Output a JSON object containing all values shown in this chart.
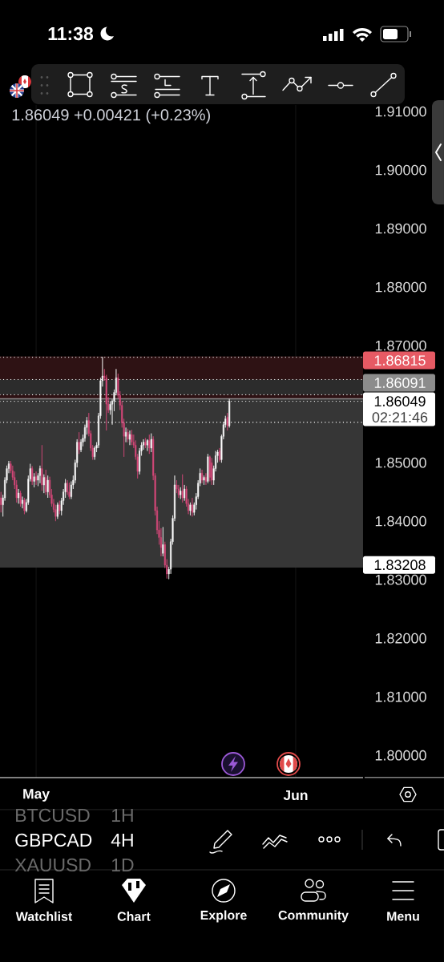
{
  "chart_data": {
    "type": "candlestick",
    "title": "GBPCAD",
    "subtitle": "4H",
    "annotations": [
      "1.86049 +0.00421 (+0.23%)",
      "02:21:46",
      "11:38",
      "BTCUSD",
      "1H",
      "XAUUSD",
      "1D",
      "Watchlist",
      "Chart",
      "Explore",
      "Community",
      "Menu"
    ],
    "categories": [
      null,
      null,
      null,
      null,
      null,
      null,
      null,
      null,
      null,
      null,
      null,
      null,
      null,
      null,
      null,
      null,
      null,
      null,
      "May",
      null,
      null,
      null,
      null,
      null,
      null,
      null,
      null,
      null,
      null,
      null,
      null,
      null,
      null,
      null,
      null,
      null,
      null,
      null,
      null,
      null,
      null,
      null,
      null,
      null,
      null,
      null,
      null,
      null,
      null,
      null,
      null,
      null,
      null,
      null,
      null,
      null,
      null,
      null,
      null,
      null,
      null,
      null,
      null,
      null,
      null,
      null,
      null,
      null,
      null,
      null,
      null,
      null,
      null,
      null,
      null,
      null,
      null,
      null,
      null,
      null,
      null,
      null,
      null,
      null,
      null,
      null,
      null,
      null,
      null,
      null,
      null,
      null,
      null,
      null,
      null,
      null,
      null,
      null,
      null,
      null,
      null,
      null,
      null,
      null,
      null,
      null,
      null,
      null,
      null,
      null,
      null,
      null,
      null,
      null,
      null,
      null,
      null,
      null,
      null,
      null,
      null,
      null,
      null,
      null,
      null,
      null,
      null,
      null,
      null,
      null,
      null,
      null,
      null,
      null,
      null,
      null,
      null,
      null,
      null,
      null,
      null,
      null,
      null,
      null,
      null,
      null,
      null,
      null,
      null,
      null,
      null,
      "Jun",
      null,
      null,
      null,
      null,
      null,
      null,
      null,
      null,
      null,
      null,
      null,
      null,
      null,
      null,
      null,
      null,
      null,
      null,
      null,
      null,
      null,
      null,
      null,
      null,
      null,
      null,
      null,
      null,
      null,
      null,
      null,
      null,
      null,
      null
    ],
    "ohlc": [
      [
        1.844,
        1.845,
        1.8415,
        1.8428
      ],
      [
        1.8428,
        1.8445,
        1.8408,
        1.844
      ],
      [
        1.844,
        1.8475,
        1.8435,
        1.847
      ],
      [
        1.847,
        1.8495,
        1.8465,
        1.849
      ],
      [
        1.849,
        1.8503,
        1.8482,
        1.8498
      ],
      [
        1.8498,
        1.8503,
        1.8482,
        1.8486
      ],
      [
        1.8486,
        1.8495,
        1.847,
        1.8475
      ],
      [
        1.8475,
        1.8485,
        1.8455,
        1.8462
      ],
      [
        1.8462,
        1.847,
        1.8432,
        1.844
      ],
      [
        1.844,
        1.8455,
        1.843,
        1.8448
      ],
      [
        1.8448,
        1.8452,
        1.8425,
        1.843
      ],
      [
        1.843,
        1.8442,
        1.8422,
        1.8436
      ],
      [
        1.8436,
        1.844,
        1.8412,
        1.8418
      ],
      [
        1.8418,
        1.8438,
        1.8415,
        1.8432
      ],
      [
        1.8432,
        1.8478,
        1.8428,
        1.8472
      ],
      [
        1.8472,
        1.8498,
        1.8468,
        1.849
      ],
      [
        1.849,
        1.8494,
        1.8462,
        1.8468
      ],
      [
        1.8468,
        1.8482,
        1.8458,
        1.8476
      ],
      [
        1.8476,
        1.8485,
        1.8462,
        1.847
      ],
      [
        1.847,
        1.8482,
        1.846,
        1.8478
      ],
      [
        1.8478,
        1.8495,
        1.8465,
        1.849
      ],
      [
        1.849,
        1.853,
        1.8452,
        1.8462
      ],
      [
        1.8462,
        1.848,
        1.8448,
        1.8475
      ],
      [
        1.8475,
        1.8488,
        1.8445,
        1.845
      ],
      [
        1.845,
        1.8478,
        1.844,
        1.847
      ],
      [
        1.847,
        1.8476,
        1.844,
        1.8445
      ],
      [
        1.8445,
        1.8455,
        1.8425,
        1.843
      ],
      [
        1.843,
        1.8438,
        1.8415,
        1.842
      ],
      [
        1.842,
        1.8428,
        1.84,
        1.8408
      ],
      [
        1.8408,
        1.8432,
        1.8404,
        1.8428
      ],
      [
        1.8428,
        1.8435,
        1.8412,
        1.8418
      ],
      [
        1.8418,
        1.844,
        1.841,
        1.8435
      ],
      [
        1.8435,
        1.8455,
        1.8428,
        1.845
      ],
      [
        1.845,
        1.8472,
        1.844,
        1.8465
      ],
      [
        1.8465,
        1.847,
        1.8445,
        1.845
      ],
      [
        1.845,
        1.8466,
        1.8438,
        1.8442
      ],
      [
        1.8442,
        1.8468,
        1.8438,
        1.8462
      ],
      [
        1.8462,
        1.8478,
        1.8455,
        1.847
      ],
      [
        1.847,
        1.8505,
        1.8465,
        1.85
      ],
      [
        1.85,
        1.854,
        1.8492,
        1.8535
      ],
      [
        1.8535,
        1.8552,
        1.8515,
        1.8522
      ],
      [
        1.8522,
        1.854,
        1.8518,
        1.8535
      ],
      [
        1.8535,
        1.8548,
        1.8528,
        1.8542
      ],
      [
        1.8542,
        1.8565,
        1.8536,
        1.856
      ],
      [
        1.856,
        1.8578,
        1.8548,
        1.8572
      ],
      [
        1.8572,
        1.8585,
        1.8545,
        1.855
      ],
      [
        1.855,
        1.8555,
        1.852,
        1.8525
      ],
      [
        1.8525,
        1.853,
        1.8505,
        1.851
      ],
      [
        1.851,
        1.8528,
        1.8505,
        1.8525
      ],
      [
        1.8525,
        1.8535,
        1.8518,
        1.853
      ],
      [
        1.853,
        1.8585,
        1.8525,
        1.858
      ],
      [
        1.858,
        1.8645,
        1.8575,
        1.864
      ],
      [
        1.864,
        1.8681,
        1.863,
        1.8648
      ],
      [
        1.8648,
        1.866,
        1.864,
        1.8645
      ],
      [
        1.8645,
        1.865,
        1.8555,
        1.86
      ],
      [
        1.86,
        1.8612,
        1.8585,
        1.859
      ],
      [
        1.859,
        1.8605,
        1.8582,
        1.86
      ],
      [
        1.86,
        1.8608,
        1.8565,
        1.8605
      ],
      [
        1.8605,
        1.8625,
        1.8588,
        1.862
      ],
      [
        1.862,
        1.866,
        1.8615,
        1.8645
      ],
      [
        1.8645,
        1.8652,
        1.861,
        1.8615
      ],
      [
        1.8615,
        1.8622,
        1.859,
        1.8598
      ],
      [
        1.8598,
        1.8605,
        1.856,
        1.8568
      ],
      [
        1.8568,
        1.8575,
        1.851,
        1.8545
      ],
      [
        1.8545,
        1.856,
        1.8535,
        1.8552
      ],
      [
        1.8552,
        1.8558,
        1.8535,
        1.854
      ],
      [
        1.854,
        1.8555,
        1.853,
        1.8548
      ],
      [
        1.8548,
        1.8556,
        1.853,
        1.8535
      ],
      [
        1.8535,
        1.8548,
        1.8525,
        1.853
      ],
      [
        1.853,
        1.8538,
        1.8505,
        1.851
      ],
      [
        1.851,
        1.8515,
        1.8473,
        1.8485
      ],
      [
        1.8485,
        1.8525,
        1.848,
        1.852
      ],
      [
        1.852,
        1.8535,
        1.8512,
        1.853
      ],
      [
        1.853,
        1.854,
        1.8522,
        1.8535
      ],
      [
        1.8535,
        1.8542,
        1.8525,
        1.853
      ],
      [
        1.853,
        1.854,
        1.852,
        1.8538
      ],
      [
        1.8538,
        1.8548,
        1.8515,
        1.8525
      ],
      [
        1.8525,
        1.855,
        1.8518,
        1.854
      ],
      [
        1.854,
        1.8545,
        1.847,
        1.8478
      ],
      [
        1.8478,
        1.8482,
        1.841,
        1.8418
      ],
      [
        1.8418,
        1.8425,
        1.8378,
        1.8385
      ],
      [
        1.8385,
        1.84,
        1.836,
        1.8372
      ],
      [
        1.8372,
        1.8388,
        1.834,
        1.8355
      ],
      [
        1.8345,
        1.839,
        1.834,
        1.836
      ],
      [
        1.836,
        1.8365,
        1.832,
        1.8325
      ],
      [
        1.8325,
        1.8335,
        1.8302,
        1.831
      ],
      [
        1.831,
        1.8322,
        1.8301,
        1.8318
      ],
      [
        1.8318,
        1.837,
        1.831,
        1.8365
      ],
      [
        1.8365,
        1.841,
        1.836,
        1.8405
      ],
      [
        1.8405,
        1.8478,
        1.84,
        1.8462
      ],
      [
        1.8462,
        1.847,
        1.8448,
        1.8455
      ],
      [
        1.8455,
        1.8462,
        1.844,
        1.8445
      ],
      [
        1.8445,
        1.8458,
        1.8438,
        1.8452
      ],
      [
        1.8452,
        1.848,
        1.8432,
        1.844
      ],
      [
        1.844,
        1.8462,
        1.8435,
        1.8455
      ],
      [
        1.8455,
        1.846,
        1.8425,
        1.843
      ],
      [
        1.843,
        1.8438,
        1.8412,
        1.8418
      ],
      [
        1.8418,
        1.8432,
        1.841,
        1.8428
      ],
      [
        1.8428,
        1.844,
        1.8408,
        1.8415
      ],
      [
        1.8415,
        1.8432,
        1.841,
        1.8428
      ],
      [
        1.8428,
        1.8448,
        1.842,
        1.8442
      ],
      [
        1.8442,
        1.847,
        1.8438,
        1.8465
      ],
      [
        1.8465,
        1.849,
        1.846,
        1.8482
      ],
      [
        1.8482,
        1.8488,
        1.8465,
        1.847
      ],
      [
        1.847,
        1.8478,
        1.8462,
        1.8475
      ],
      [
        1.8475,
        1.8482,
        1.8462,
        1.8468
      ],
      [
        1.8468,
        1.8515,
        1.8465,
        1.851
      ],
      [
        1.851,
        1.8512,
        1.8468,
        1.8475
      ],
      [
        1.85,
        1.8508,
        1.8462,
        1.847
      ],
      [
        1.847,
        1.8495,
        1.8462,
        1.849
      ],
      [
        1.849,
        1.852,
        1.8485,
        1.8512
      ],
      [
        1.8512,
        1.8522,
        1.85,
        1.8518
      ],
      [
        1.852,
        1.8525,
        1.8502,
        1.8505
      ],
      [
        1.8505,
        1.8548,
        1.85,
        1.8545
      ],
      [
        1.8545,
        1.857,
        1.854,
        1.8565
      ],
      [
        1.8565,
        1.858,
        1.856,
        1.8575
      ],
      [
        1.8578,
        1.8585,
        1.8555,
        1.8563
      ],
      [
        1.8563,
        1.8609,
        1.856,
        1.86049
      ],
      null,
      null,
      null,
      null,
      null,
      null,
      null,
      null,
      null,
      null,
      null,
      null,
      null,
      null,
      null,
      null,
      null,
      null,
      null,
      null,
      null,
      null,
      null,
      null,
      null,
      null,
      null,
      null,
      null,
      null,
      null,
      null,
      null,
      null,
      null,
      null,
      null,
      null,
      null,
      null,
      null,
      null,
      null,
      null,
      null,
      null,
      null,
      null,
      null,
      null,
      null,
      null,
      null,
      null,
      null,
      null,
      null,
      null,
      null,
      null,
      null,
      null,
      null,
      null,
      null,
      null,
      null,
      null
    ],
    "colors": [
      "#d9487b",
      "#ffffff",
      "#ffffff",
      "#ffffff",
      "#ffffff",
      "#d9487b",
      "#d9487b",
      "#d9487b",
      "#d9487b",
      "#ffffff",
      "#d9487b",
      "#ffffff",
      "#d9487b",
      "#ffffff",
      "#ffffff",
      "#ffffff",
      "#d9487b",
      "#ffffff",
      "#d9487b",
      "#ffffff",
      "#ffffff",
      "#d9487b",
      "#ffffff",
      "#d9487b",
      "#ffffff",
      "#d9487b",
      "#d9487b",
      "#d9487b",
      "#d9487b",
      "#ffffff",
      "#d9487b",
      "#ffffff",
      "#ffffff",
      "#ffffff",
      "#d9487b",
      "#d9487b",
      "#ffffff",
      "#ffffff",
      "#ffffff",
      "#ffffff",
      "#d9487b",
      "#ffffff",
      "#ffffff",
      "#ffffff",
      "#ffffff",
      "#d9487b",
      "#d9487b",
      "#d9487b",
      "#ffffff",
      "#ffffff",
      "#ffffff",
      "#ffffff",
      "#ffffff",
      "#d9487b",
      "#d9487b",
      "#d9487b",
      "#ffffff",
      "#ffffff",
      "#ffffff",
      "#ffffff",
      "#d9487b",
      "#d9487b",
      "#d9487b",
      "#d9487b",
      "#ffffff",
      "#d9487b",
      "#ffffff",
      "#d9487b",
      "#d9487b",
      "#d9487b",
      "#d9487b",
      "#ffffff",
      "#ffffff",
      "#ffffff",
      "#d9487b",
      "#ffffff",
      "#d9487b",
      "#ffffff",
      "#d9487b",
      "#d9487b",
      "#d9487b",
      "#d9487b",
      "#d9487b",
      "#ffffff",
      "#d9487b",
      "#d9487b",
      "#ffffff",
      "#ffffff",
      "#ffffff",
      "#ffffff",
      "#d9487b",
      "#d9487b",
      "#ffffff",
      "#d9487b",
      "#ffffff",
      "#d9487b",
      "#d9487b",
      "#ffffff",
      "#d9487b",
      "#ffffff",
      "#ffffff",
      "#ffffff",
      "#ffffff",
      "#d9487b",
      "#ffffff",
      "#d9487b",
      "#ffffff",
      "#d9487b",
      "#d9487b",
      "#ffffff",
      "#ffffff",
      "#ffffff",
      "#d9487b",
      "#ffffff",
      "#ffffff",
      "#ffffff",
      "#d9487b",
      "#ffffff",
      null,
      null,
      null,
      null,
      null,
      null,
      null,
      null,
      null,
      null,
      null,
      null,
      null,
      null,
      null,
      null,
      null,
      null,
      null,
      null,
      null,
      null,
      null,
      null,
      null,
      null,
      null,
      null,
      null,
      null,
      null,
      null,
      null,
      null,
      null,
      null,
      null,
      null,
      null,
      null,
      null,
      null,
      null,
      null,
      null,
      null,
      null,
      null,
      null,
      null,
      null,
      null,
      null,
      null,
      null,
      null,
      null,
      null,
      null,
      null,
      null,
      null,
      null,
      null,
      null,
      null,
      null,
      null
    ],
    "ylim": [
      1.7962,
      1.9111
    ],
    "yticks": [
      {
        "value": 1.8,
        "label": "1.80000"
      },
      {
        "value": 1.81,
        "label": "1.81000"
      },
      {
        "value": 1.82,
        "label": "1.82000"
      },
      {
        "value": 1.83,
        "label": "1.83000"
      },
      {
        "value": 1.84,
        "label": "1.84000"
      },
      {
        "value": 1.85,
        "label": "1.85000"
      },
      {
        "value": 1.87,
        "label": "1.87000"
      },
      {
        "value": 1.88,
        "label": "1.88000"
      },
      {
        "value": 1.89,
        "label": "1.89000"
      },
      {
        "value": 1.9,
        "label": "1.90000"
      },
      {
        "value": 1.91,
        "label": "1.91000"
      }
    ],
    "grid": "x",
    "ref_lines": [
      {
        "axis": "y",
        "value": 1.86049,
        "label": "1.86049",
        "color": "#ffffff",
        "line_style": "dotted"
      },
      {
        "axis": "y",
        "value": 1.86091,
        "label": "1.86091",
        "color": "#8c8c8c"
      },
      {
        "axis": "y",
        "value": 1.868,
        "color": "#ffffff",
        "line_style": "dotted"
      },
      {
        "axis": "y",
        "value": 1.8642,
        "color": "#ffffff",
        "line_style": "dotted"
      },
      {
        "axis": "y",
        "value": 1.8616,
        "color": "#ffffff",
        "line_style": "dotted"
      },
      {
        "axis": "y",
        "value": 1.8569,
        "color": "#ffffff",
        "line_style": "dotted"
      }
    ],
    "bands": [
      {
        "axis": "y",
        "from": 1.86091,
        "to": 1.86815,
        "label": "1.86815",
        "color": "#2e1214"
      },
      {
        "axis": "y",
        "from": 1.83208,
        "to": 1.86091,
        "label": "1.83208",
        "color": "#363636"
      },
      {
        "axis": "y",
        "from": 1.8616,
        "to": 1.8642,
        "color": "#2c2c2c"
      }
    ]
  }
}
